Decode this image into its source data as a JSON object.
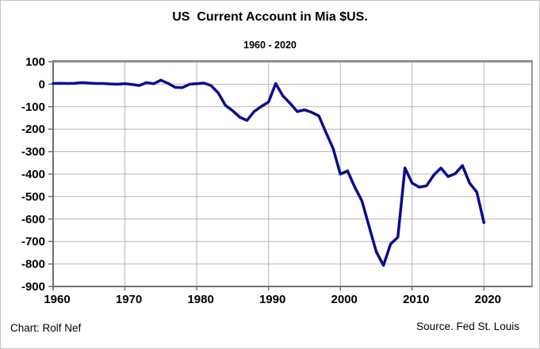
{
  "chart_data": {
    "type": "line",
    "title": "US  Current Account in Mia $US.",
    "subtitle": "1960 - 2020",
    "xlabel": "",
    "ylabel": "",
    "xlim": [
      1960,
      2026.7
    ],
    "ylim": [
      -900,
      100
    ],
    "grid": true,
    "legend": "none",
    "xticks": [
      1960,
      1970,
      1980,
      1990,
      2000,
      2010,
      2020
    ],
    "yticks": [
      100,
      0,
      -100,
      -200,
      -300,
      -400,
      -500,
      -600,
      -700,
      -800,
      -900
    ],
    "series": [
      {
        "name": "US Current Account (Mia $US)",
        "x": [
          1960,
          1961,
          1962,
          1963,
          1964,
          1965,
          1966,
          1967,
          1968,
          1969,
          1970,
          1971,
          1972,
          1973,
          1974,
          1975,
          1976,
          1977,
          1978,
          1979,
          1980,
          1981,
          1982,
          1983,
          1984,
          1985,
          1986,
          1987,
          1988,
          1989,
          1990,
          1991,
          1992,
          1993,
          1994,
          1995,
          1996,
          1997,
          1998,
          1999,
          2000,
          2001,
          2002,
          2003,
          2004,
          2005,
          2006,
          2007,
          2008,
          2009,
          2010,
          2011,
          2012,
          2013,
          2014,
          2015,
          2016,
          2017,
          2018,
          2019,
          2020
        ],
        "values": [
          3,
          4,
          3,
          4,
          7,
          5,
          3,
          3,
          1,
          0,
          2,
          -1,
          -6,
          7,
          2,
          18,
          4,
          -14,
          -15,
          0,
          2,
          5,
          -6,
          -39,
          -94,
          -118,
          -147,
          -161,
          -121,
          -99,
          -79,
          3,
          -52,
          -85,
          -122,
          -114,
          -125,
          -141,
          -215,
          -287,
          -400,
          -386,
          -457,
          -519,
          -632,
          -745,
          -806,
          -711,
          -681,
          -373,
          -440,
          -458,
          -452,
          -405,
          -373,
          -411,
          -398,
          -362,
          -440,
          -480,
          -616
        ]
      }
    ],
    "colors": {
      "line": "#0b0b8f",
      "grid": "#b5b5b5",
      "plot_border": "#9a9a9a",
      "axis": "#707070",
      "text": "#000000"
    }
  },
  "footer": {
    "left": "Chart: Rolf Nef",
    "right": "Source. Fed St. Louis"
  }
}
